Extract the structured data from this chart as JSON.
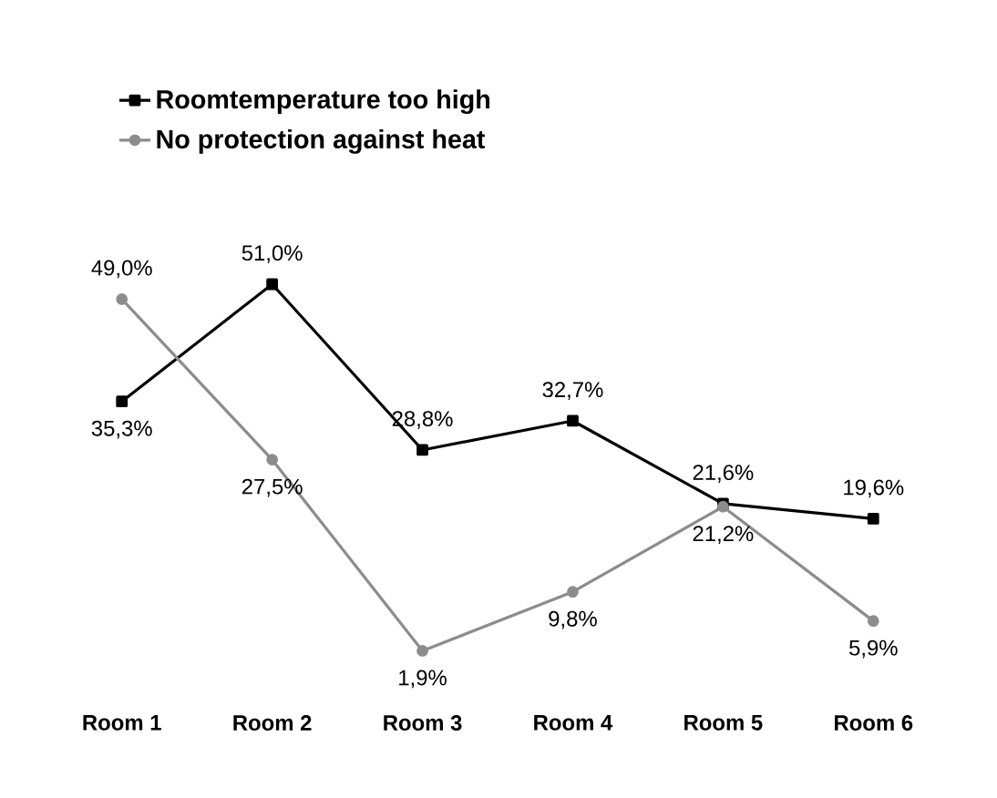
{
  "chart_data": {
    "type": "line",
    "categories": [
      "Room 1",
      "Room 2",
      "Room 3",
      "Room 4",
      "Room 5",
      "Room 6"
    ],
    "series": [
      {
        "name": "Roomtemperature too high",
        "color": "#000000",
        "marker": "square",
        "values": [
          35.3,
          51.0,
          28.8,
          32.7,
          21.6,
          19.6
        ],
        "value_labels": [
          "35,3%",
          "51,0%",
          "28,8%",
          "32,7%",
          "21,6%",
          "19,6%"
        ]
      },
      {
        "name": "No protection against heat",
        "color": "#8c8c8c",
        "marker": "circle",
        "values": [
          49.0,
          27.5,
          1.9,
          9.8,
          21.2,
          5.9
        ],
        "value_labels": [
          "49,0%",
          "27,5%",
          "1,9%",
          "9,8%",
          "21,2%",
          "5,9%"
        ]
      }
    ],
    "legend": "top left"
  }
}
